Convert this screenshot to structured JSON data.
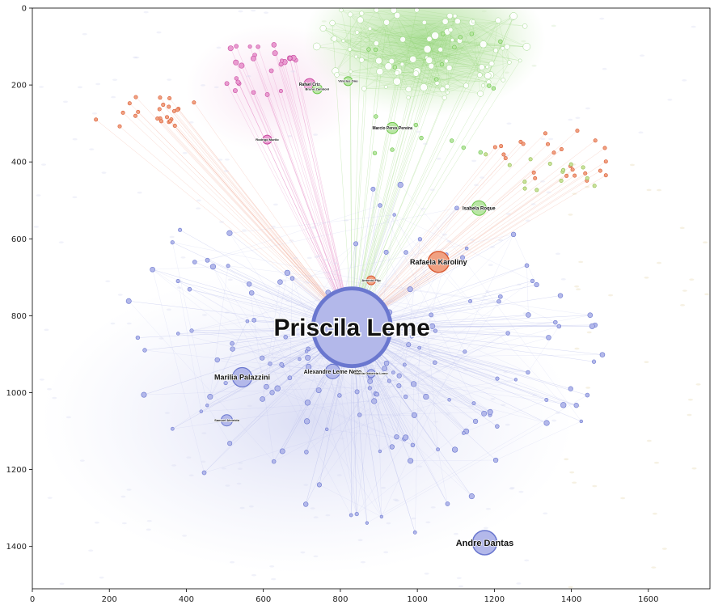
{
  "chart_data": {
    "type": "scatter",
    "title": "",
    "xlabel": "",
    "ylabel": "",
    "xlim": [
      0,
      1760
    ],
    "ylim": [
      1510,
      0
    ],
    "xticks": [
      0,
      200,
      400,
      600,
      800,
      1000,
      1200,
      1400,
      1600
    ],
    "yticks": [
      0,
      200,
      400,
      600,
      800,
      1000,
      1200,
      1400
    ],
    "center": {
      "x": 830,
      "y": 830
    },
    "colors": {
      "blue_fill": "#b3b8ea",
      "blue_stroke": "#6a77cf",
      "green_fill": "#b9e6a4",
      "green_stroke": "#6cc54a",
      "red_fill": "#f0a182",
      "red_stroke": "#d9582f",
      "pink_fill": "#e99bd0",
      "pink_stroke": "#c94aa0",
      "olive_fill": "#c9e29a",
      "olive_stroke": "#8fb84a"
    },
    "labeled_nodes": [
      {
        "name": "Priscila Leme",
        "x": 830,
        "y": 830,
        "size": 96,
        "group": "blue",
        "label_size": 30
      },
      {
        "name": "Andre Dantas",
        "x": 1175,
        "y": 1390,
        "size": 30,
        "group": "blue",
        "label_size": 11
      },
      {
        "name": "Rafaela Karoliny",
        "x": 1055,
        "y": 660,
        "size": 26,
        "group": "red",
        "label_size": 9
      },
      {
        "name": "Marilia Palazzini",
        "x": 545,
        "y": 960,
        "size": 24,
        "group": "blue",
        "label_size": 9
      },
      {
        "name": "Alexandre Leme Neto",
        "x": 780,
        "y": 945,
        "size": 18,
        "group": "blue",
        "label_size": 7
      },
      {
        "name": "Isabela Roque",
        "x": 1160,
        "y": 520,
        "size": 18,
        "group": "green",
        "label_size": 6
      },
      {
        "name": "Marcio Peres Pereira",
        "x": 935,
        "y": 312,
        "size": 14,
        "group": "green",
        "label_size": 5
      },
      {
        "name": "Rafael Criz",
        "x": 720,
        "y": 198,
        "size": 14,
        "group": "pink",
        "label_size": 5
      },
      {
        "name": "Samuel Almeida",
        "x": 505,
        "y": 1072,
        "size": 14,
        "group": "blue",
        "label_size": 4
      },
      {
        "name": "Marcia Gabriela Leme",
        "x": 880,
        "y": 950,
        "size": 10,
        "group": "blue",
        "label_size": 4
      },
      {
        "name": "Bruno Zamboni",
        "x": 740,
        "y": 210,
        "size": 12,
        "group": "green",
        "label_size": 4
      },
      {
        "name": "Vinicius Ono",
        "x": 820,
        "y": 190,
        "size": 11,
        "group": "green",
        "label_size": 4
      },
      {
        "name": "Antonio Filp",
        "x": 880,
        "y": 708,
        "size": 11,
        "group": "red",
        "label_size": 4
      },
      {
        "name": "Rodrigo Murilo",
        "x": 610,
        "y": 342,
        "size": 11,
        "group": "pink",
        "label_size": 4
      }
    ]
  }
}
